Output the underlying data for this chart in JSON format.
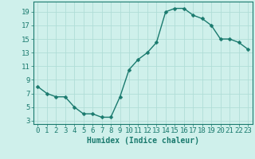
{
  "x": [
    0,
    1,
    2,
    3,
    4,
    5,
    6,
    7,
    8,
    9,
    10,
    11,
    12,
    13,
    14,
    15,
    16,
    17,
    18,
    19,
    20,
    21,
    22,
    23
  ],
  "y": [
    8.0,
    7.0,
    6.5,
    6.5,
    5.0,
    4.0,
    4.0,
    3.5,
    3.5,
    6.5,
    10.5,
    12.0,
    13.0,
    14.5,
    19.0,
    19.5,
    19.5,
    18.5,
    18.0,
    17.0,
    15.0,
    15.0,
    14.5,
    13.5
  ],
  "line_color": "#1a7a6e",
  "marker": "D",
  "marker_size": 2.5,
  "bg_color": "#cff0eb",
  "grid_color": "#b0ddd7",
  "xlabel": "Humidex (Indice chaleur)",
  "yticks": [
    3,
    5,
    7,
    9,
    11,
    13,
    15,
    17,
    19
  ],
  "xticks": [
    0,
    1,
    2,
    3,
    4,
    5,
    6,
    7,
    8,
    9,
    10,
    11,
    12,
    13,
    14,
    15,
    16,
    17,
    18,
    19,
    20,
    21,
    22,
    23
  ],
  "ylim": [
    2.5,
    20.5
  ],
  "xlim": [
    -0.5,
    23.5
  ],
  "xlabel_fontsize": 7,
  "tick_fontsize": 6.5,
  "tick_color": "#1a7a6e",
  "axis_color": "#1a7a6e",
  "linewidth": 1.0
}
